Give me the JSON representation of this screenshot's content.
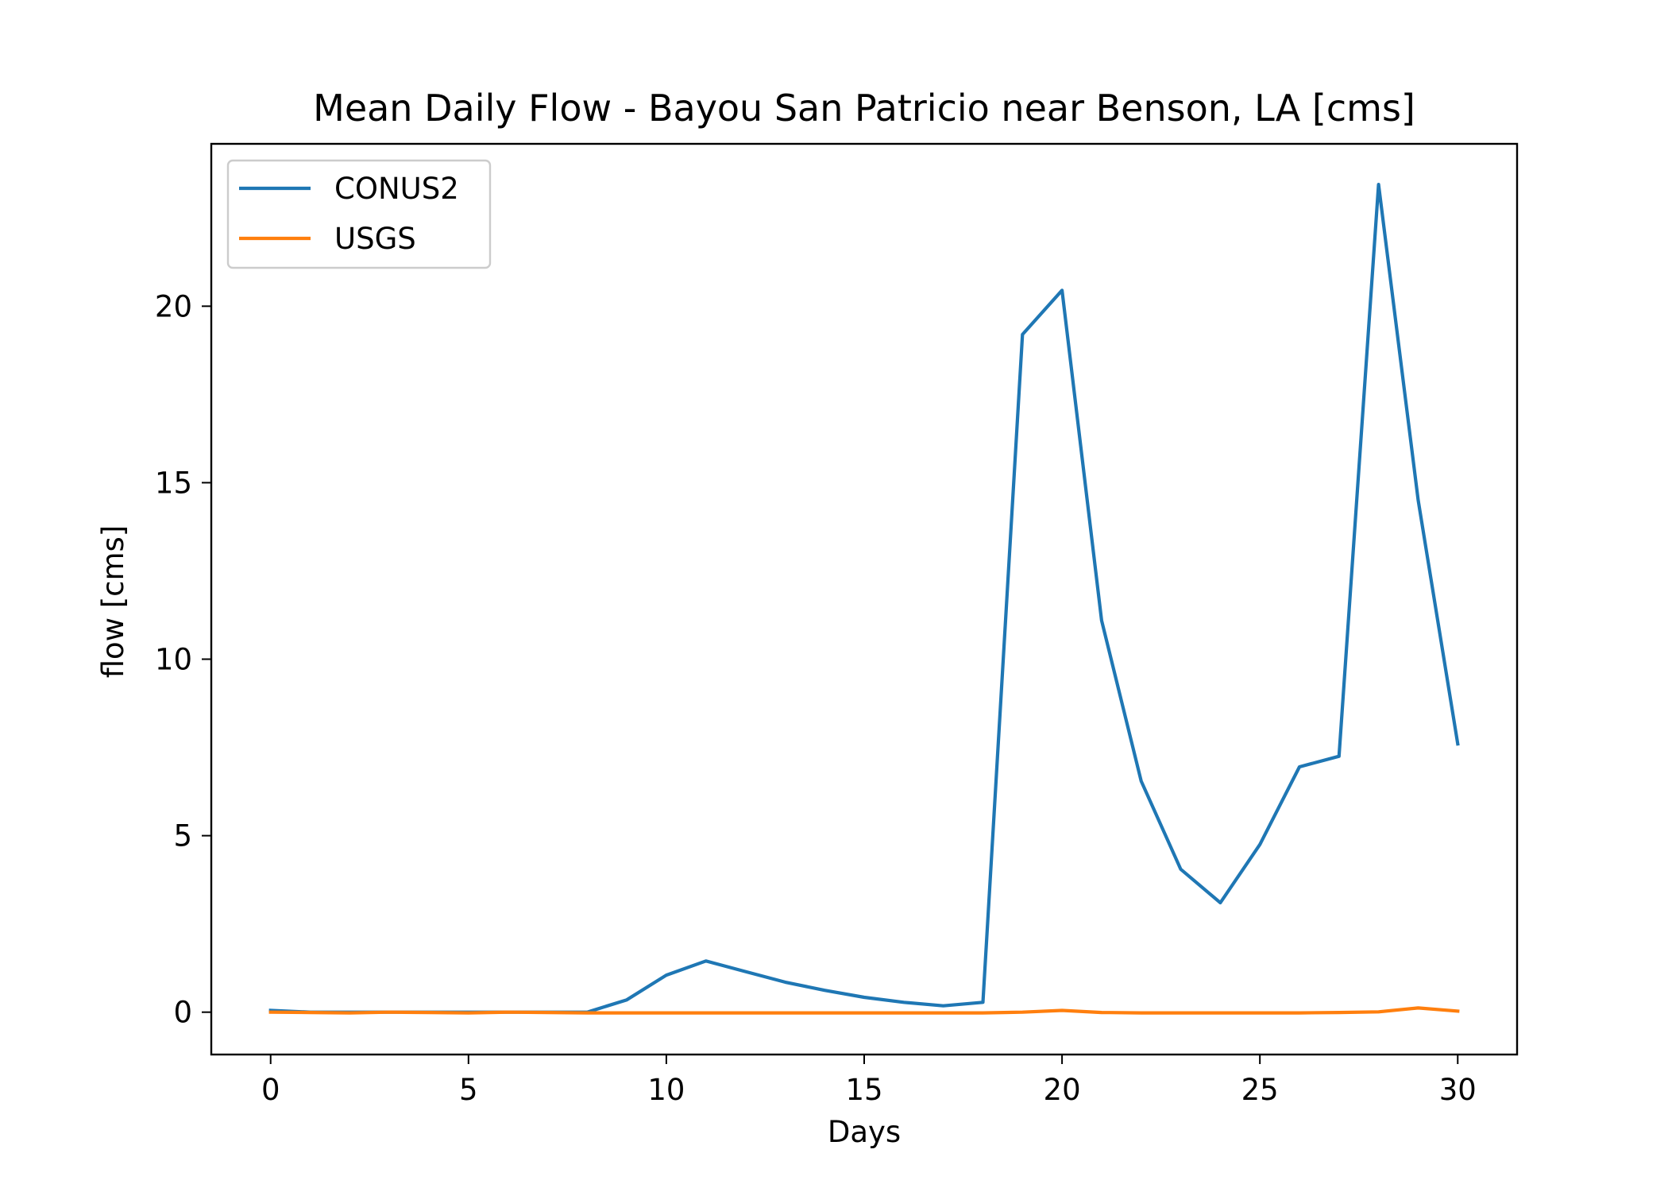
{
  "chart_data": {
    "type": "line",
    "title": "Mean Daily Flow - Bayou San Patricio near Benson, LA [cms]",
    "xlabel": "Days",
    "ylabel": "flow [cms]",
    "xlim": [
      -1.5,
      31.5
    ],
    "ylim": [
      -1.2,
      24.6
    ],
    "xticks": [
      0,
      5,
      10,
      15,
      20,
      25,
      30
    ],
    "yticks": [
      0,
      5,
      10,
      15,
      20
    ],
    "grid": false,
    "legend_position": "top-left",
    "x": [
      0,
      1,
      2,
      3,
      4,
      5,
      6,
      7,
      8,
      9,
      10,
      11,
      12,
      13,
      14,
      15,
      16,
      17,
      18,
      19,
      20,
      21,
      22,
      23,
      24,
      25,
      26,
      27,
      28,
      29,
      30
    ],
    "series": [
      {
        "name": "CONUS2",
        "color": "#1f77b4",
        "values": [
          0.05,
          0.0,
          0.0,
          0.0,
          0.0,
          0.0,
          0.0,
          0.0,
          0.0,
          0.35,
          1.05,
          1.45,
          1.15,
          0.85,
          0.62,
          0.42,
          0.28,
          0.18,
          0.28,
          19.2,
          20.45,
          11.1,
          6.55,
          4.05,
          3.1,
          4.75,
          6.95,
          7.25,
          23.45,
          14.5,
          7.6
        ]
      },
      {
        "name": "USGS",
        "color": "#ff7f0e",
        "values": [
          0.0,
          -0.01,
          -0.02,
          0.0,
          -0.01,
          -0.02,
          0.0,
          -0.01,
          -0.02,
          -0.02,
          -0.02,
          -0.02,
          -0.02,
          -0.02,
          -0.02,
          -0.02,
          -0.02,
          -0.02,
          -0.02,
          0.0,
          0.05,
          -0.01,
          -0.02,
          -0.02,
          -0.02,
          -0.02,
          -0.02,
          -0.01,
          0.01,
          0.12,
          0.03
        ]
      }
    ]
  }
}
